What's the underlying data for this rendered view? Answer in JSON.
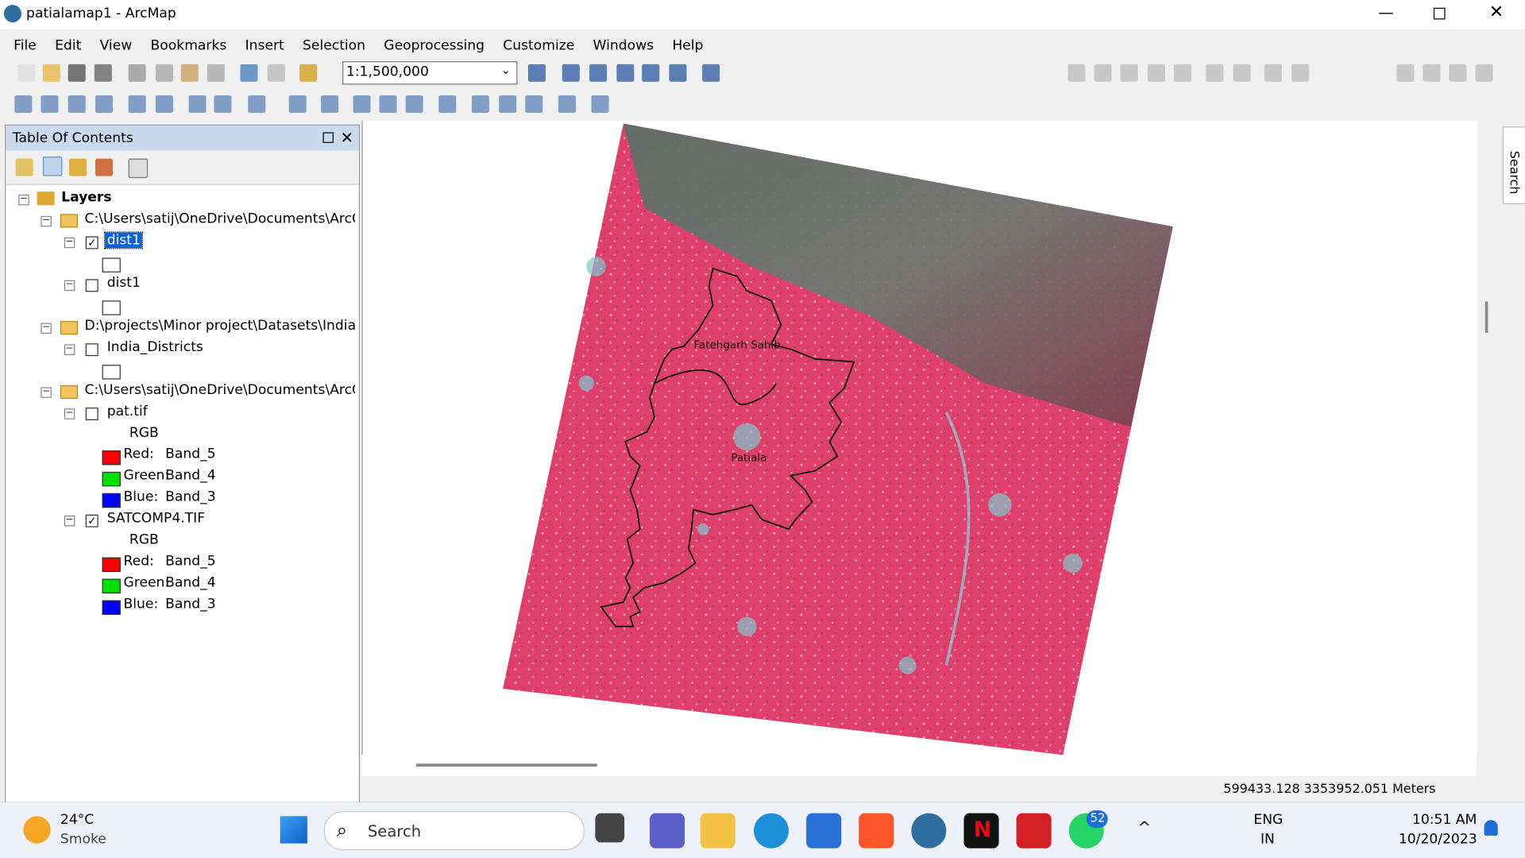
{
  "window": {
    "title": "patialamap1 - ArcMap"
  },
  "menu": [
    "File",
    "Edit",
    "View",
    "Bookmarks",
    "Insert",
    "Selection",
    "Geoprocessing",
    "Customize",
    "Windows",
    "Help"
  ],
  "toolbar": {
    "scale": "1:1,500,000"
  },
  "toc": {
    "title": "Table Of Contents",
    "root": "Layers",
    "groups": [
      {
        "path": "C:\\Users\\satij\\OneDrive\\Documents\\ArcGIS",
        "layers": [
          {
            "name": "dist1",
            "checked": true
          },
          {
            "name": "dist1",
            "checked": false
          }
        ]
      },
      {
        "path": "D:\\projects\\Minor project\\Datasets\\India_D",
        "layers": [
          {
            "name": "India_Districts",
            "checked": false
          }
        ]
      },
      {
        "path": "C:\\Users\\satij\\OneDrive\\Documents\\ArcGIS",
        "layers": [
          {
            "name": "pat.tif",
            "checked": false,
            "legend": "RGB",
            "bands": [
              {
                "label": "Red:",
                "band": "Band_5",
                "color": "#ff0000"
              },
              {
                "label": "Green:",
                "band": "Band_4",
                "color": "#00e000"
              },
              {
                "label": "Blue:",
                "band": "Band_3",
                "color": "#0000ff"
              }
            ]
          },
          {
            "name": "SATCOMP4.TIF",
            "checked": true,
            "legend": "RGB",
            "bands": [
              {
                "label": "Red:",
                "band": "Band_5",
                "color": "#ff0000"
              },
              {
                "label": "Green:",
                "band": "Band_4",
                "color": "#00e000"
              },
              {
                "label": "Blue:",
                "band": "Band_3",
                "color": "#0000ff"
              }
            ]
          }
        ]
      }
    ]
  },
  "map": {
    "labels": [
      "Fatehgarh Sahib",
      "Patiala"
    ]
  },
  "side_tab": "Search",
  "status": {
    "coordinates": "599433.128  3353952.051 Meters"
  },
  "taskbar": {
    "temperature": "24°C",
    "weather": "Smoke",
    "search": "Search",
    "badge": "52",
    "language": "ENG",
    "region": "IN",
    "time": "10:51 AM",
    "date": "10/20/2023"
  }
}
